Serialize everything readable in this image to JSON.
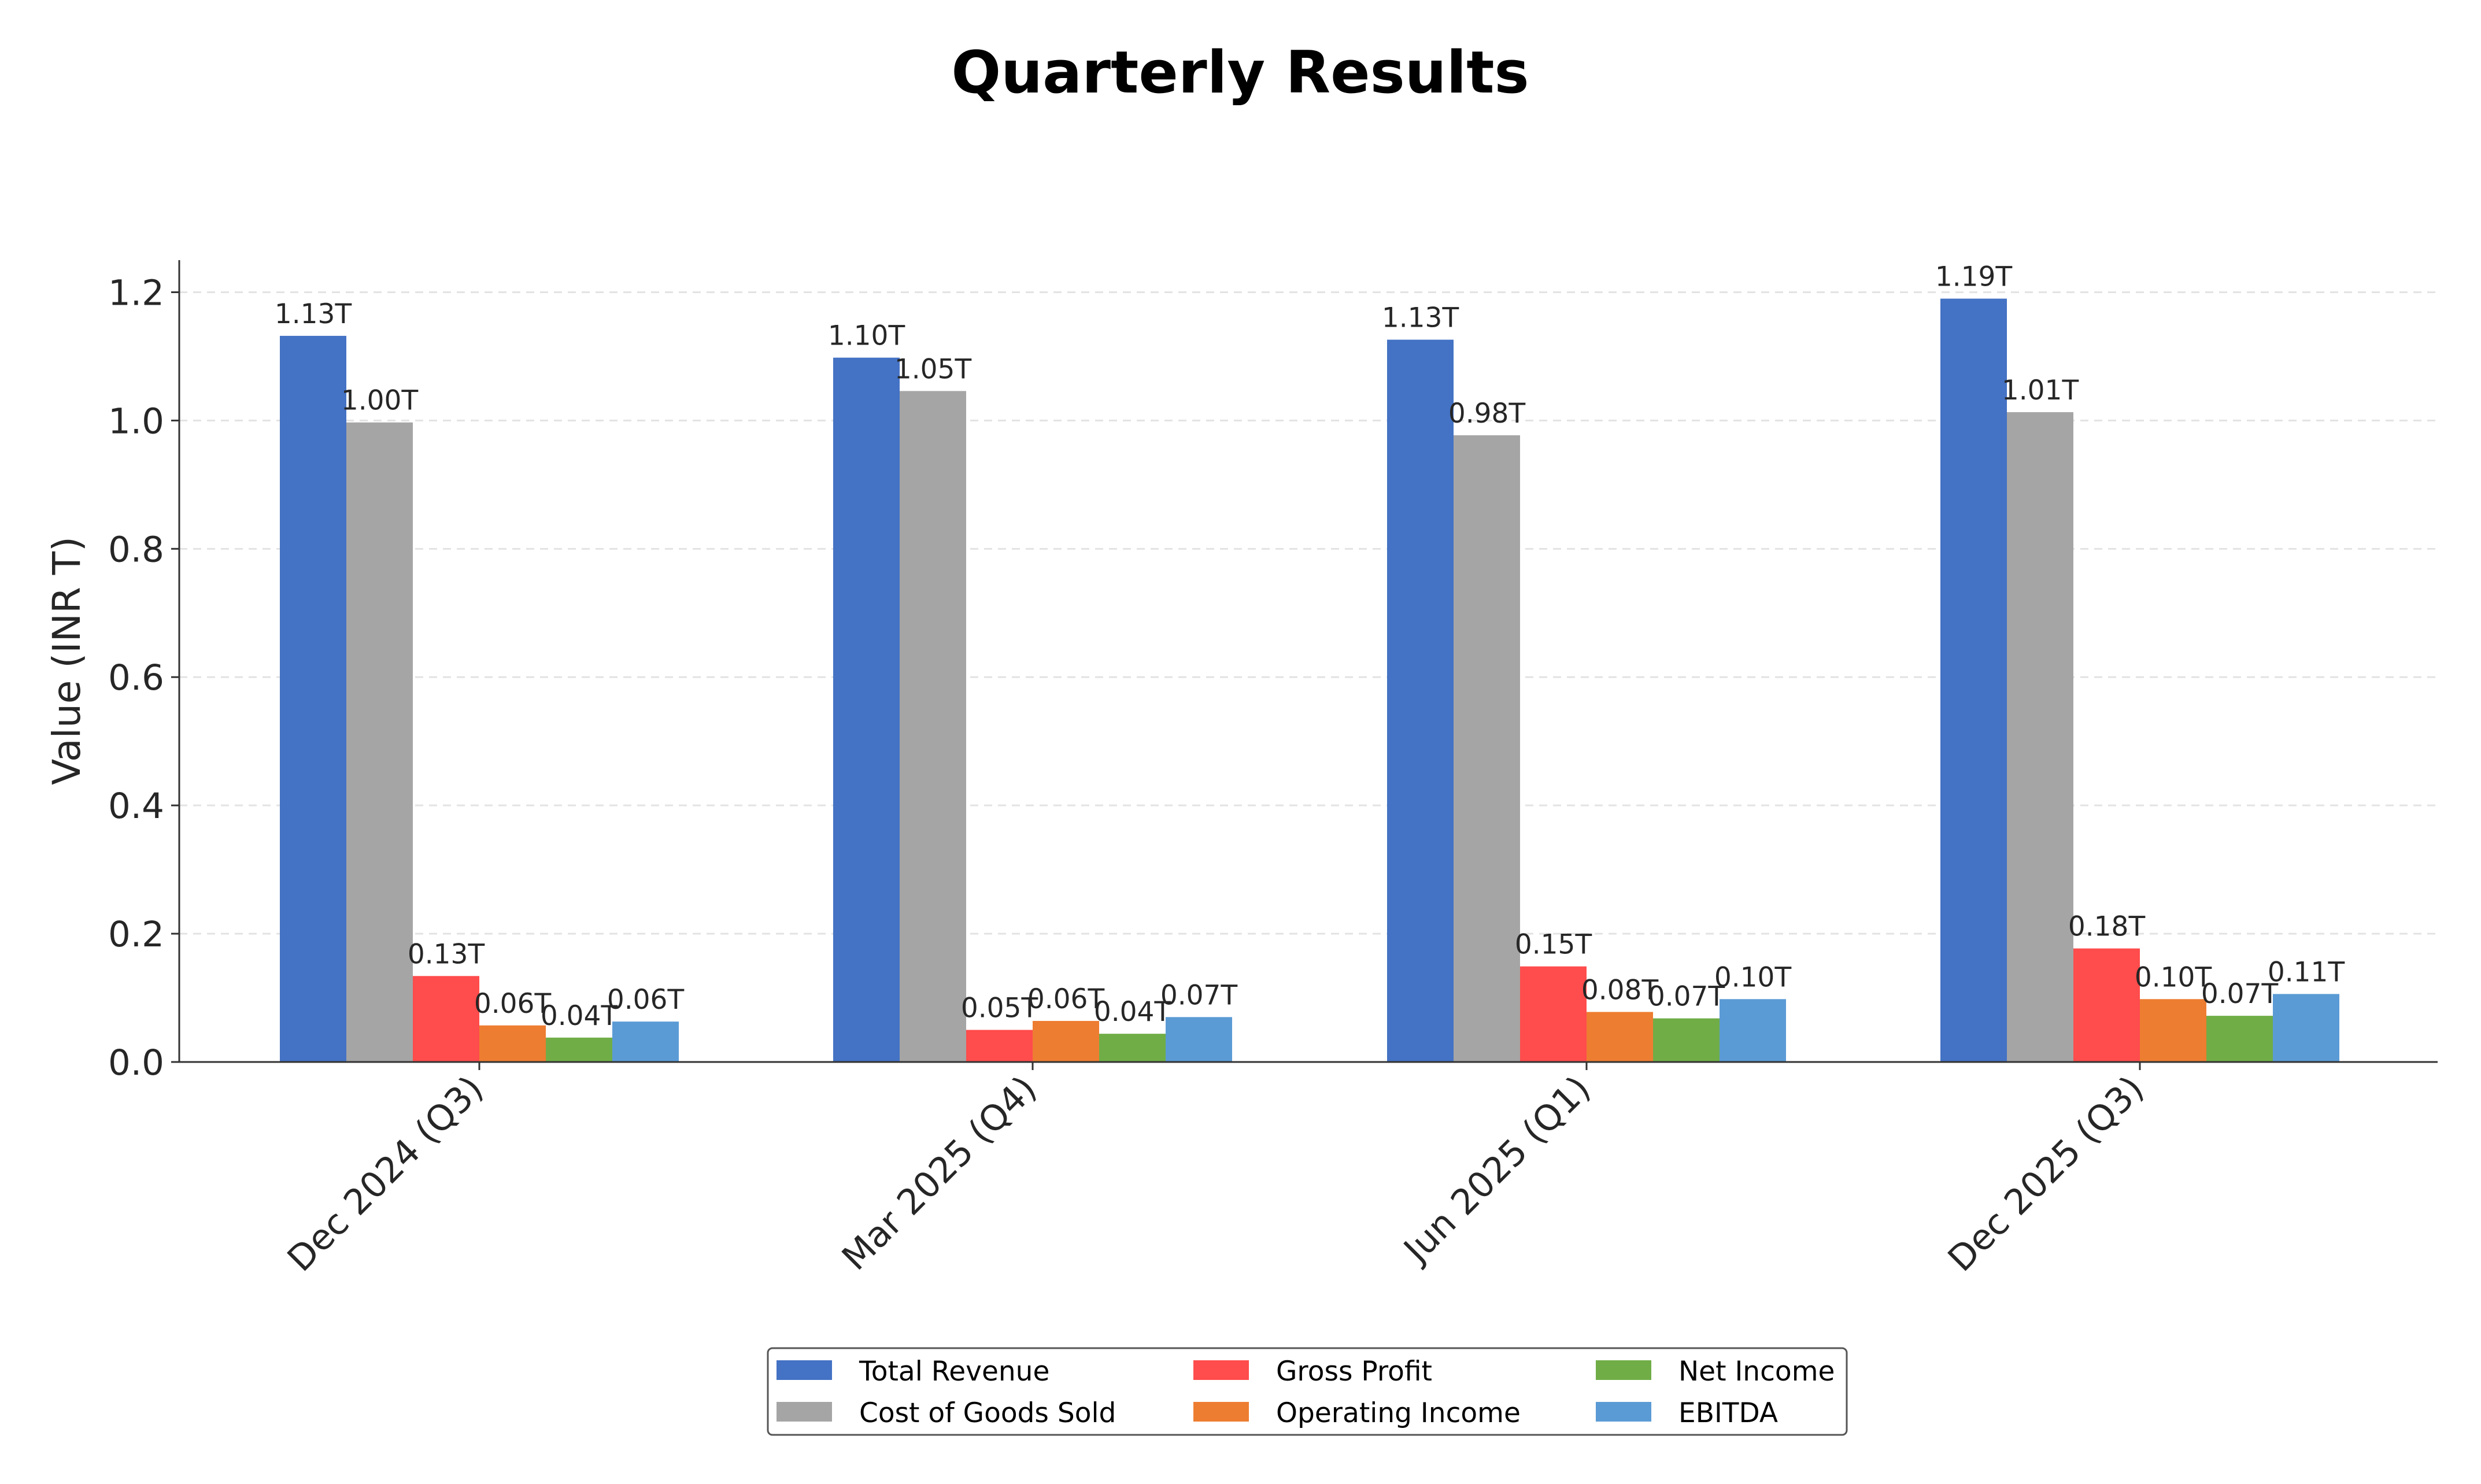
{
  "chart_data": {
    "type": "bar",
    "title": "Quarterly Results",
    "xlabel": "",
    "ylabel": "Value (INR T)",
    "ylim": [
      0,
      1.25
    ],
    "yticks": [
      "0.0",
      "0.2",
      "0.4",
      "0.6",
      "0.8",
      "1.0",
      "1.2"
    ],
    "grid": "y-dashed",
    "legend_position": "bottom-center",
    "categories": [
      "Dec 2024 (Q3)",
      "Mar 2025 (Q4)",
      "Jun 2025 (Q1)",
      "Dec 2025 (Q3)"
    ],
    "series": [
      {
        "name": "Total Revenue",
        "color": "#4472C4",
        "values": [
          1.132,
          1.098,
          1.126,
          1.19
        ],
        "labels": [
          "1.13T",
          "1.10T",
          "1.13T",
          "1.19T"
        ]
      },
      {
        "name": "Cost of Goods Sold",
        "color": "#A5A5A5",
        "values": [
          0.997,
          1.046,
          0.977,
          1.013
        ],
        "labels": [
          "1.00T",
          "1.05T",
          "0.98T",
          "1.01T"
        ]
      },
      {
        "name": "Gross Profit",
        "color": "#FF4C4C",
        "values": [
          0.134,
          0.05,
          0.149,
          0.177
        ],
        "labels": [
          "0.13T",
          "0.05T",
          "0.15T",
          "0.18T"
        ]
      },
      {
        "name": "Operating Income",
        "color": "#ED7D31",
        "values": [
          0.057,
          0.064,
          0.078,
          0.098
        ],
        "labels": [
          "0.06T",
          "0.06T",
          "0.08T",
          "0.10T"
        ]
      },
      {
        "name": "Net Income",
        "color": "#70AD47",
        "values": [
          0.038,
          0.044,
          0.068,
          0.072
        ],
        "labels": [
          "0.04T",
          "0.04T",
          "0.07T",
          "0.07T"
        ]
      },
      {
        "name": "EBITDA",
        "color": "#5B9BD5",
        "values": [
          0.063,
          0.07,
          0.098,
          0.106
        ],
        "labels": [
          "0.06T",
          "0.07T",
          "0.10T",
          "0.11T"
        ]
      }
    ]
  }
}
